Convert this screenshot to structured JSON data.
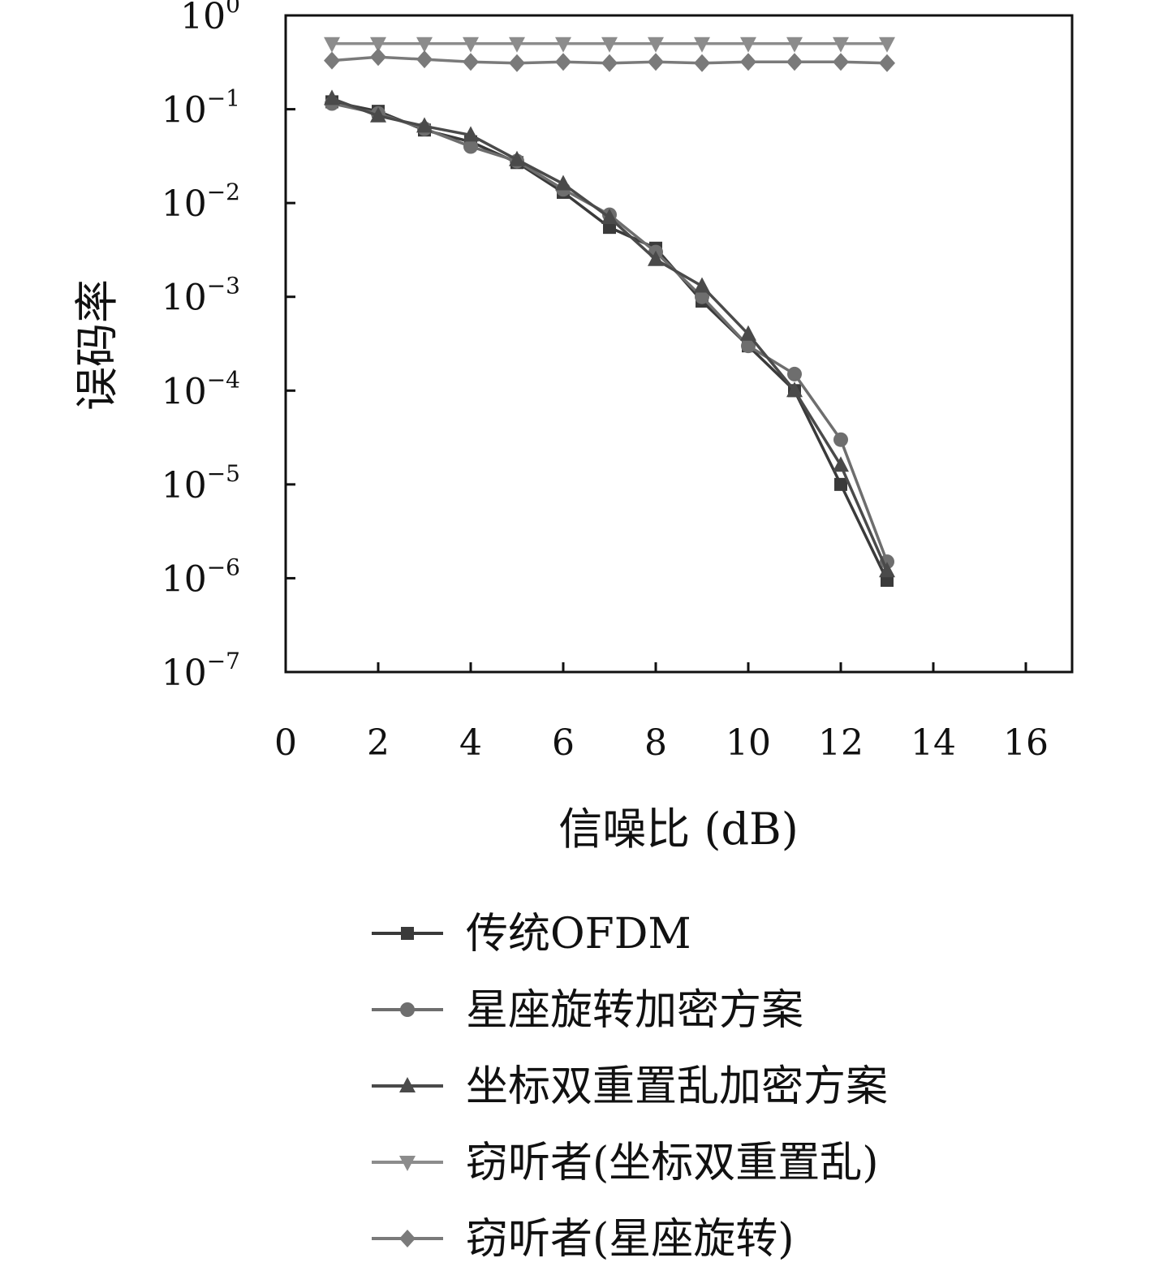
{
  "chart_data": {
    "type": "line",
    "xlabel": "信噪比 (dB)",
    "ylabel": "误码率",
    "yscale": "log",
    "xlim": [
      0,
      17
    ],
    "ylim": [
      1e-07,
      1
    ],
    "xticks": [
      0,
      2,
      4,
      6,
      8,
      10,
      12,
      14,
      16
    ],
    "xtick_labels": [
      "0",
      "2",
      "4",
      "6",
      "8",
      "10",
      "12",
      "14",
      "16"
    ],
    "yticks": [
      {
        "base": "10",
        "exp": "0"
      },
      {
        "base": "10",
        "exp": "−1"
      },
      {
        "base": "10",
        "exp": "−2"
      },
      {
        "base": "10",
        "exp": "−3"
      },
      {
        "base": "10",
        "exp": "−4"
      },
      {
        "base": "10",
        "exp": "−5"
      },
      {
        "base": "10",
        "exp": "−6"
      },
      {
        "base": "10",
        "exp": "−7"
      }
    ],
    "grid": false,
    "legend_position": "bottom",
    "x": [
      1,
      2,
      3,
      4,
      5,
      6,
      7,
      8,
      9,
      10,
      11,
      12,
      13
    ],
    "series": [
      {
        "name": "传统OFDM",
        "marker": "square",
        "color": "#3a3a3a",
        "values": [
          0.12,
          0.095,
          0.06,
          0.045,
          0.027,
          0.013,
          0.0055,
          0.0033,
          0.0009,
          0.0003,
          0.0001,
          1e-05,
          9.5e-07
        ]
      },
      {
        "name": "星座旋转加密方案",
        "marker": "circle",
        "color": "#6e6e6e",
        "values": [
          0.115,
          0.09,
          0.062,
          0.04,
          0.028,
          0.014,
          0.0075,
          0.003,
          0.001,
          0.0003,
          0.00015,
          3e-05,
          1.5e-06
        ]
      },
      {
        "name": "坐标双重置乱加密方案",
        "marker": "triangle-up",
        "color": "#4a4a4a",
        "values": [
          0.13,
          0.085,
          0.066,
          0.053,
          0.029,
          0.016,
          0.007,
          0.0025,
          0.0013,
          0.0004,
          0.0001,
          1.6e-05,
          1.2e-06
        ]
      },
      {
        "name": "窃听者(坐标双重置乱)",
        "marker": "triangle-down",
        "color": "#8c8c8c",
        "values": [
          0.5,
          0.5,
          0.5,
          0.5,
          0.5,
          0.5,
          0.5,
          0.5,
          0.5,
          0.5,
          0.5,
          0.5,
          0.5
        ]
      },
      {
        "name": "窃听者(星座旋转)",
        "marker": "diamond",
        "color": "#7a7a7a",
        "values": [
          0.33,
          0.36,
          0.34,
          0.32,
          0.31,
          0.32,
          0.31,
          0.32,
          0.31,
          0.32,
          0.32,
          0.32,
          0.31
        ]
      }
    ]
  }
}
